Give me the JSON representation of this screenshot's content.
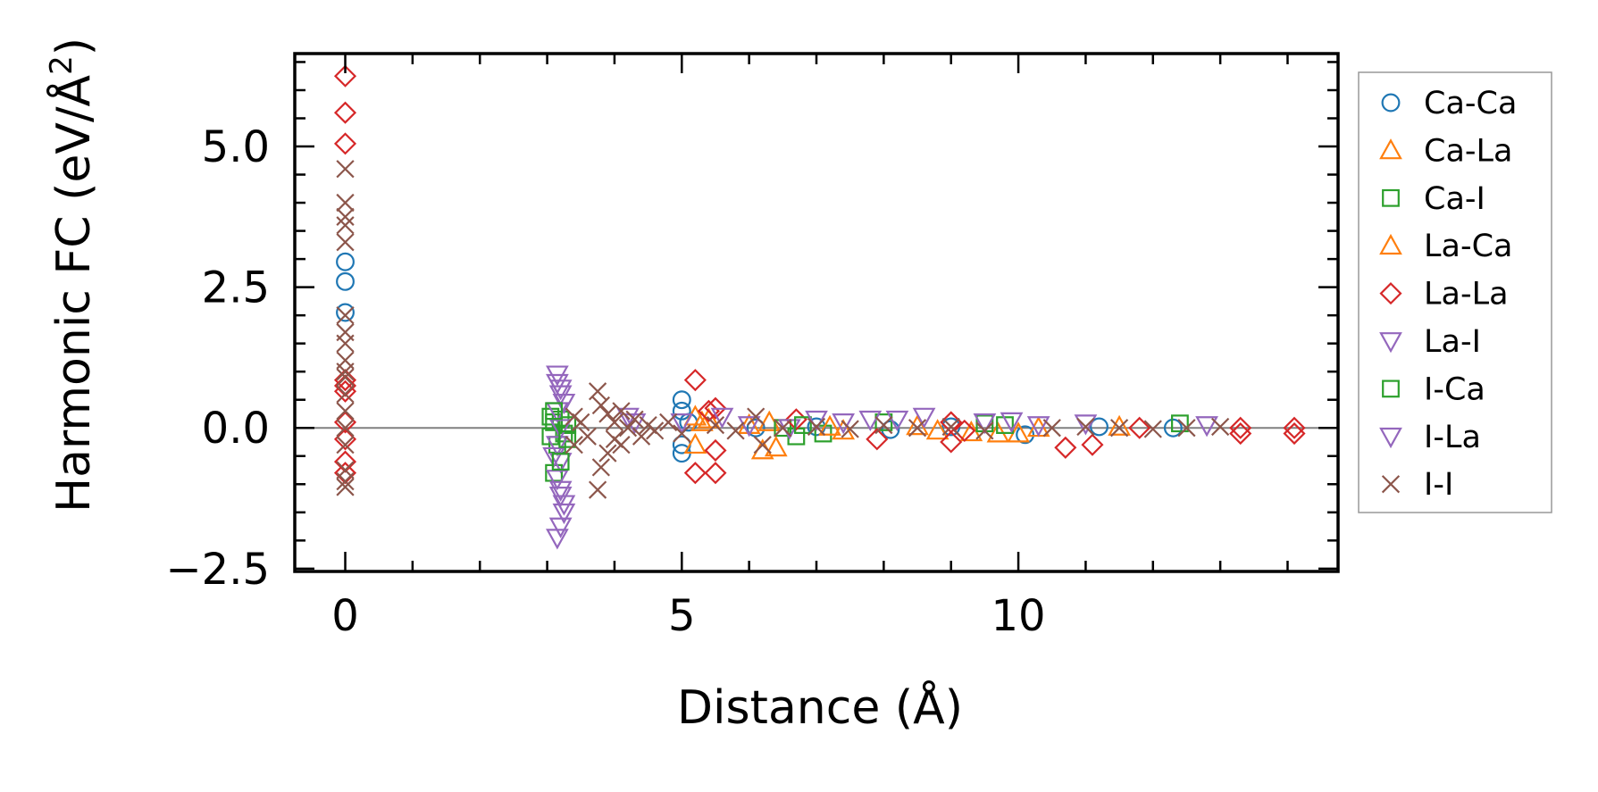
{
  "chart_data": {
    "type": "scatter",
    "title": "",
    "xlabel": "Distance (Å)",
    "ylabel": "Harmonic FC (eV/Å²)",
    "ylabel_base": "Harmonic FC (eV/Å",
    "ylabel_sup": "2",
    "ylabel_close": ")",
    "xlim": [
      -0.75,
      14.75
    ],
    "ylim": [
      -2.55,
      6.65
    ],
    "xticks": [
      0,
      5,
      10
    ],
    "xtick_labels": [
      "0",
      "5",
      "10"
    ],
    "yticks": [
      -2.5,
      0.0,
      2.5,
      5.0
    ],
    "ytick_labels": [
      "−2.5",
      "0.0",
      "2.5",
      "5.0"
    ],
    "zero_line": 0,
    "grid": false,
    "legend_position": "outside-right",
    "series": [
      {
        "name": "Ca-Ca",
        "marker": "circle",
        "color": "#1f77b4",
        "points": [
          [
            0,
            2.95
          ],
          [
            0,
            2.6
          ],
          [
            0,
            2.05
          ],
          [
            5.0,
            0.5
          ],
          [
            5.0,
            0.3
          ],
          [
            5.0,
            -0.45
          ],
          [
            5.0,
            -0.3
          ],
          [
            5.1,
            0.1
          ],
          [
            6.1,
            0.0
          ],
          [
            7.0,
            0.02
          ],
          [
            8.1,
            -0.03
          ],
          [
            9.0,
            0.02
          ],
          [
            10.1,
            -0.12
          ],
          [
            11.2,
            0.02
          ],
          [
            12.3,
            0.0
          ]
        ]
      },
      {
        "name": "Ca-La",
        "marker": "triangle-up",
        "color": "#ff7f0e",
        "points": [
          [
            5.2,
            0.2
          ],
          [
            5.2,
            -0.3
          ],
          [
            5.4,
            0.15
          ],
          [
            6.2,
            -0.4
          ],
          [
            6.3,
            0.1
          ],
          [
            7.4,
            -0.05
          ],
          [
            8.5,
            0.03
          ],
          [
            9.3,
            -0.08
          ],
          [
            9.7,
            -0.1
          ],
          [
            10.0,
            -0.1
          ],
          [
            11.5,
            0.02
          ]
        ]
      },
      {
        "name": "Ca-I",
        "marker": "square",
        "color": "#2ca02c",
        "points": [
          [
            3.05,
            0.2
          ],
          [
            3.05,
            -0.15
          ],
          [
            3.1,
            -0.8
          ],
          [
            3.1,
            0.1
          ],
          [
            3.15,
            -0.3
          ],
          [
            3.2,
            0.15
          ],
          [
            3.25,
            -0.1
          ],
          [
            3.3,
            0.05
          ],
          [
            6.5,
            0.0
          ],
          [
            6.7,
            -0.15
          ],
          [
            7.1,
            -0.1
          ],
          [
            8.0,
            0.1
          ],
          [
            9.5,
            0.08
          ],
          [
            12.4,
            0.08
          ]
        ]
      },
      {
        "name": "La-Ca",
        "marker": "triangle-up",
        "color": "#ff7f0e",
        "points": [
          [
            5.3,
            0.1
          ],
          [
            6.0,
            0.05
          ],
          [
            6.4,
            -0.35
          ],
          [
            7.2,
            0.02
          ],
          [
            8.8,
            -0.05
          ],
          [
            10.3,
            0.0
          ]
        ]
      },
      {
        "name": "La-La",
        "marker": "diamond",
        "color": "#d62728",
        "points": [
          [
            0,
            6.25
          ],
          [
            0,
            5.6
          ],
          [
            0,
            5.05
          ],
          [
            0,
            0.85
          ],
          [
            0,
            0.75
          ],
          [
            0,
            0.65
          ],
          [
            0,
            0.1
          ],
          [
            0,
            -0.2
          ],
          [
            0,
            -0.6
          ],
          [
            0,
            -0.8
          ],
          [
            5.2,
            0.85
          ],
          [
            5.2,
            -0.8
          ],
          [
            5.5,
            0.35
          ],
          [
            5.5,
            -0.8
          ],
          [
            5.4,
            0.3
          ],
          [
            5.5,
            -0.4
          ],
          [
            6.7,
            0.15
          ],
          [
            7.9,
            -0.2
          ],
          [
            9.0,
            -0.25
          ],
          [
            9.0,
            0.1
          ],
          [
            9.2,
            -0.05
          ],
          [
            10.7,
            -0.35
          ],
          [
            11.1,
            -0.3
          ],
          [
            11.8,
            0.0
          ],
          [
            13.3,
            -0.1
          ],
          [
            13.3,
            0.0
          ],
          [
            14.1,
            -0.1
          ],
          [
            14.1,
            0.0
          ]
        ]
      },
      {
        "name": "La-I",
        "marker": "triangle-down",
        "color": "#9467bd",
        "points": [
          [
            3.15,
            0.95
          ],
          [
            3.15,
            0.8
          ],
          [
            3.2,
            0.6
          ],
          [
            3.15,
            0.3
          ],
          [
            3.2,
            0.0
          ],
          [
            3.15,
            -0.3
          ],
          [
            3.2,
            -0.6
          ],
          [
            3.15,
            -0.9
          ],
          [
            3.2,
            -1.2
          ],
          [
            3.25,
            -1.5
          ],
          [
            3.2,
            -1.75
          ],
          [
            3.15,
            -1.95
          ],
          [
            3.25,
            -1.35
          ],
          [
            3.1,
            -0.5
          ],
          [
            3.25,
            0.45
          ],
          [
            4.2,
            0.2
          ],
          [
            5.0,
            0.1
          ],
          [
            6.0,
            0.05
          ],
          [
            6.6,
            0.0
          ],
          [
            7.4,
            0.1
          ],
          [
            7.8,
            0.15
          ],
          [
            8.6,
            0.2
          ],
          [
            9.5,
            0.1
          ],
          [
            10.3,
            0.05
          ],
          [
            11.0,
            0.08
          ]
        ]
      },
      {
        "name": "I-Ca",
        "marker": "square",
        "color": "#2ca02c",
        "points": [
          [
            3.1,
            0.3
          ],
          [
            3.2,
            -0.6
          ],
          [
            3.3,
            -0.2
          ],
          [
            6.8,
            0.05
          ],
          [
            9.8,
            0.05
          ]
        ]
      },
      {
        "name": "I-La",
        "marker": "triangle-down",
        "color": "#9467bd",
        "points": [
          [
            3.2,
            0.7
          ],
          [
            3.2,
            -1.1
          ],
          [
            4.3,
            0.1
          ],
          [
            5.6,
            0.2
          ],
          [
            7.0,
            0.15
          ],
          [
            8.2,
            0.15
          ],
          [
            9.9,
            0.12
          ],
          [
            12.8,
            0.05
          ]
        ]
      },
      {
        "name": "I-I",
        "marker": "x",
        "color": "#8c564b",
        "points": [
          [
            0,
            4.6
          ],
          [
            0,
            4.0
          ],
          [
            0,
            3.75
          ],
          [
            0,
            3.6
          ],
          [
            0,
            3.3
          ],
          [
            0,
            2.0
          ],
          [
            0,
            1.7
          ],
          [
            0,
            1.5
          ],
          [
            0,
            1.2
          ],
          [
            0,
            1.0
          ],
          [
            0,
            0.9
          ],
          [
            0,
            0.6
          ],
          [
            0,
            0.3
          ],
          [
            0,
            0.0
          ],
          [
            0,
            -0.3
          ],
          [
            0,
            -0.75
          ],
          [
            0,
            -0.95
          ],
          [
            0,
            -1.05
          ],
          [
            3.4,
            0.2
          ],
          [
            3.4,
            -0.3
          ],
          [
            3.5,
            0.1
          ],
          [
            3.6,
            -0.15
          ],
          [
            3.75,
            0.65
          ],
          [
            3.75,
            -1.1
          ],
          [
            3.8,
            0.4
          ],
          [
            3.8,
            -0.7
          ],
          [
            3.9,
            0.25
          ],
          [
            3.9,
            -0.45
          ],
          [
            4.0,
            0.1
          ],
          [
            4.0,
            -0.2
          ],
          [
            4.1,
            0.3
          ],
          [
            4.1,
            -0.3
          ],
          [
            4.2,
            0.0
          ],
          [
            4.3,
            0.15
          ],
          [
            4.4,
            -0.15
          ],
          [
            4.5,
            0.05
          ],
          [
            4.6,
            -0.05
          ],
          [
            4.8,
            0.1
          ],
          [
            5.0,
            -0.1
          ],
          [
            5.5,
            0.05
          ],
          [
            5.8,
            -0.05
          ],
          [
            6.1,
            0.2
          ],
          [
            6.2,
            -0.3
          ],
          [
            6.5,
            0.0
          ],
          [
            7.0,
            0.02
          ],
          [
            7.5,
            -0.02
          ],
          [
            8.0,
            0.05
          ],
          [
            8.5,
            0.0
          ],
          [
            9.0,
            0.02
          ],
          [
            9.5,
            -0.05
          ],
          [
            10.5,
            0.0
          ],
          [
            11.0,
            0.02
          ],
          [
            11.5,
            0.0
          ],
          [
            12.0,
            -0.02
          ],
          [
            12.5,
            0.0
          ],
          [
            13.0,
            0.02
          ]
        ]
      }
    ]
  }
}
